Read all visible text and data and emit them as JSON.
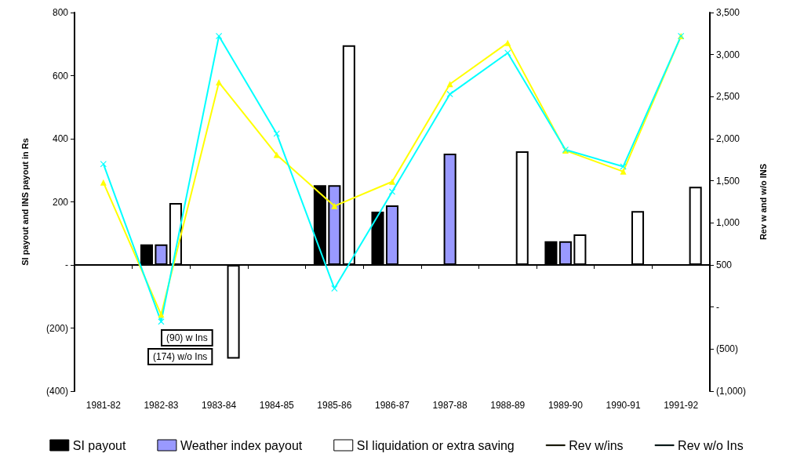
{
  "chart_data": {
    "type": "bar",
    "ylabel": "SI payout and INS payout in Rs",
    "y2label": "Rev w and w/o INS",
    "categories": [
      "1981-82",
      "1982-83",
      "1983-84",
      "1984-85",
      "1985-86",
      "1986-87",
      "1987-88",
      "1988-89",
      "1989-90",
      "1990-91",
      "1991-92"
    ],
    "series": [
      {
        "name": "SI payout",
        "color": "#000000",
        "values": [
          null,
          65,
          null,
          null,
          253,
          169,
          null,
          null,
          75,
          null,
          null
        ]
      },
      {
        "name": "Weather index payout",
        "color": "#9999ff",
        "values": [
          null,
          65,
          null,
          null,
          253,
          189,
          353,
          null,
          75,
          null,
          null
        ]
      },
      {
        "name": "SI liquidation or extra saving",
        "color": "#ffffff",
        "values": [
          null,
          196,
          -297,
          null,
          696,
          null,
          null,
          360,
          97,
          171,
          248
        ]
      },
      {
        "name": "Rev w/ins",
        "type": "line",
        "axis": "y2",
        "marker": "triangle",
        "color": "#ffff00",
        "values": [
          1480,
          -90,
          2670,
          1810,
          1200,
          1490,
          2650,
          3140,
          1860,
          1610,
          3220
        ]
      },
      {
        "name": "Rev w/o Ins",
        "type": "line",
        "axis": "y2",
        "marker": "cross",
        "color": "#00ffff",
        "values": [
          1700,
          -174,
          3220,
          2060,
          220,
          1370,
          2530,
          3020,
          1870,
          1670,
          3220
        ]
      }
    ],
    "ylim": [
      -400,
      800
    ],
    "yticks": [
      {
        "value": -400,
        "label": "(400)"
      },
      {
        "value": -200,
        "label": "(200)"
      },
      {
        "value": 0,
        "label": "-"
      },
      200,
      400,
      600,
      800
    ],
    "y2lim": [
      -1000,
      3500
    ],
    "y2ticks": [
      {
        "value": -1000,
        "label": "(1,000)"
      },
      {
        "value": -500,
        "label": "(500)"
      },
      {
        "value": 0,
        "label": "-"
      },
      500,
      {
        "value": 1000,
        "label": "1,000"
      },
      {
        "value": 1500,
        "label": "1,500"
      },
      {
        "value": 2000,
        "label": "2,000"
      },
      {
        "value": 2500,
        "label": "2,500"
      },
      {
        "value": 3000,
        "label": "3,000"
      },
      {
        "value": 3500,
        "label": "3,500"
      }
    ],
    "annotations": [
      "(90) w Ins",
      "(174) w/o Ins"
    ],
    "legend": "bottom"
  }
}
